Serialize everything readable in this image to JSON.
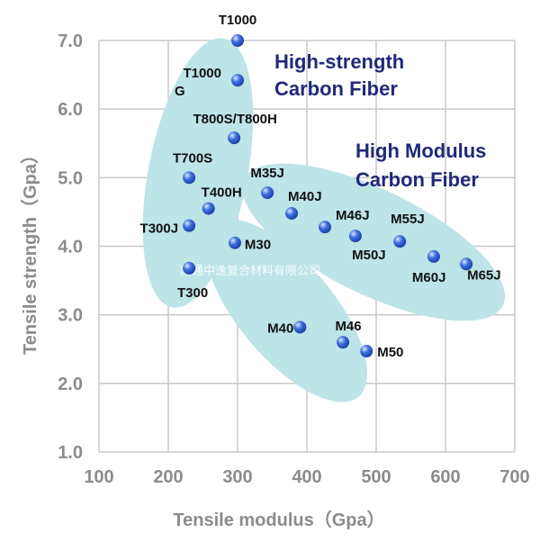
{
  "chart_data": {
    "type": "scatter",
    "xlabel": "Tensile modulus（Gpa）",
    "ylabel": "Tensile strength（Gpa）",
    "xlim": [
      100,
      700
    ],
    "ylim": [
      1.0,
      7.0
    ],
    "x_ticks": [
      "100",
      "200",
      "300",
      "400",
      "500",
      "600",
      "700"
    ],
    "y_ticks": [
      "1.0",
      "2.0",
      "3.0",
      "4.0",
      "5.0",
      "6.0",
      "7.0"
    ],
    "grid": true,
    "colors": {
      "point": "#3f6fe0",
      "region": "#bde4e6",
      "group_text": "#1f2a7a",
      "axis_text": "#8c8c8c",
      "grid": "#c8c8c8"
    },
    "points": [
      {
        "label": "T1000",
        "x": 300,
        "y": 7.0
      },
      {
        "label": "T1000G",
        "x": 300,
        "y": 6.42
      },
      {
        "label": "T800S/T800H",
        "x": 295,
        "y": 5.58
      },
      {
        "label": "T700S",
        "x": 230,
        "y": 5.0
      },
      {
        "label": "T400H",
        "x": 258,
        "y": 4.55
      },
      {
        "label": "T300J",
        "x": 230,
        "y": 4.3
      },
      {
        "label": "T300",
        "x": 230,
        "y": 3.68
      },
      {
        "label": "M35J",
        "x": 343,
        "y": 4.78
      },
      {
        "label": "M40J",
        "x": 378,
        "y": 4.48
      },
      {
        "label": "M46J",
        "x": 426,
        "y": 4.28
      },
      {
        "label": "M50J",
        "x": 470,
        "y": 4.15
      },
      {
        "label": "M55J",
        "x": 534,
        "y": 4.07
      },
      {
        "label": "M60J",
        "x": 583,
        "y": 3.85
      },
      {
        "label": "M65J",
        "x": 630,
        "y": 3.74
      },
      {
        "label": "M30",
        "x": 296,
        "y": 4.05
      },
      {
        "label": "M40",
        "x": 390,
        "y": 2.82
      },
      {
        "label": "M46",
        "x": 452,
        "y": 2.6
      },
      {
        "label": "M50",
        "x": 486,
        "y": 2.47
      }
    ],
    "annotations": {
      "high_strength": [
        "High-strength",
        "Carbon Fiber"
      ],
      "high_modulus": [
        "High Modulus",
        "Carbon Fiber"
      ]
    },
    "watermark": "南通中逸复合材料有限公司"
  }
}
